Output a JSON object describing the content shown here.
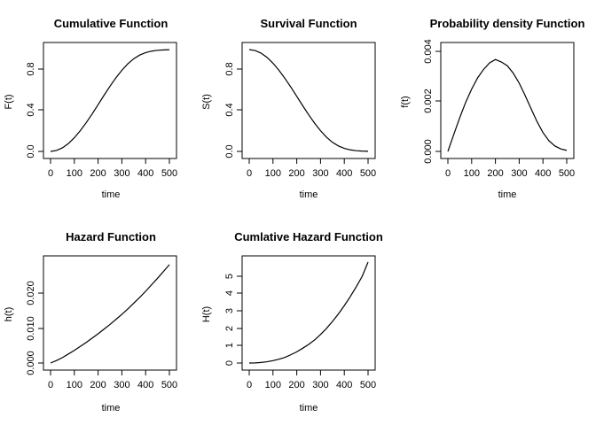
{
  "figure": {
    "panels": [
      {
        "id": "cdf",
        "title": "Cumulative Function",
        "xlabel": "time",
        "ylabel": "F(t)"
      },
      {
        "id": "surv",
        "title": "Survival Function",
        "xlabel": "time",
        "ylabel": "S(t)"
      },
      {
        "id": "pdf",
        "title": "Probability density Function",
        "xlabel": "time",
        "ylabel": "f(t)"
      },
      {
        "id": "haz",
        "title": "Hazard Function",
        "xlabel": "time",
        "ylabel": "h(t)"
      },
      {
        "id": "cumhaz",
        "title": "Cumlative Hazard Function",
        "xlabel": "time",
        "ylabel": "H(t)"
      }
    ]
  },
  "chart_data": [
    {
      "type": "line",
      "title": "Cumulative Function",
      "xlabel": "time",
      "ylabel": "F(t)",
      "xlim": [
        0,
        500
      ],
      "ylim": [
        0,
        1
      ],
      "xticks": [
        0,
        100,
        200,
        300,
        400,
        500
      ],
      "yticks": [
        0.0,
        0.4,
        0.8
      ],
      "ytick_labels": [
        "0.0",
        "0.4",
        "0.8"
      ],
      "line_color": "#000000",
      "x": [
        0,
        25,
        50,
        75,
        100,
        125,
        150,
        175,
        200,
        225,
        250,
        275,
        300,
        325,
        350,
        375,
        400,
        425,
        450,
        475,
        500
      ],
      "y": [
        0,
        0.009,
        0.035,
        0.077,
        0.134,
        0.203,
        0.282,
        0.368,
        0.459,
        0.551,
        0.64,
        0.723,
        0.797,
        0.86,
        0.91,
        0.946,
        0.97,
        0.985,
        0.993,
        0.997,
        0.999
      ]
    },
    {
      "type": "line",
      "title": "Survival Function",
      "xlabel": "time",
      "ylabel": "S(t)",
      "xlim": [
        0,
        500
      ],
      "ylim": [
        0,
        1
      ],
      "xticks": [
        0,
        100,
        200,
        300,
        400,
        500
      ],
      "yticks": [
        0.0,
        0.4,
        0.8
      ],
      "ytick_labels": [
        "0.0",
        "0.4",
        "0.8"
      ],
      "line_color": "#000000",
      "x": [
        0,
        25,
        50,
        75,
        100,
        125,
        150,
        175,
        200,
        225,
        250,
        275,
        300,
        325,
        350,
        375,
        400,
        425,
        450,
        475,
        500
      ],
      "y": [
        1,
        0.991,
        0.965,
        0.923,
        0.866,
        0.797,
        0.718,
        0.632,
        0.541,
        0.449,
        0.36,
        0.277,
        0.203,
        0.14,
        0.09,
        0.054,
        0.03,
        0.015,
        0.007,
        0.003,
        0.001
      ]
    },
    {
      "type": "line",
      "title": "Probability density Function",
      "xlabel": "time",
      "ylabel": "f(t)",
      "xlim": [
        0,
        500
      ],
      "ylim": [
        0,
        0.0041
      ],
      "xticks": [
        0,
        100,
        200,
        300,
        400,
        500
      ],
      "yticks": [
        0.0,
        0.002,
        0.004
      ],
      "ytick_labels": [
        "0.000",
        "0.002",
        "0.004"
      ],
      "line_color": "#000000",
      "x": [
        0,
        25,
        50,
        75,
        100,
        125,
        150,
        175,
        200,
        225,
        250,
        275,
        300,
        325,
        350,
        375,
        400,
        425,
        450,
        475,
        500
      ],
      "y": [
        0,
        0.00069,
        0.00136,
        0.00198,
        0.00251,
        0.00296,
        0.0033,
        0.00356,
        0.0037,
        0.0036,
        0.00345,
        0.00315,
        0.00275,
        0.00225,
        0.00172,
        0.0012,
        0.00076,
        0.00043,
        0.00022,
        0.0001,
        4e-05
      ]
    },
    {
      "type": "line",
      "title": "Hazard Function",
      "xlabel": "time",
      "ylabel": "h(t)",
      "xlim": [
        0,
        500
      ],
      "ylim": [
        0,
        0.028
      ],
      "xticks": [
        0,
        100,
        200,
        300,
        400,
        500
      ],
      "yticks": [
        0.0,
        0.01,
        0.02
      ],
      "ytick_labels": [
        "0.000",
        "0.010",
        "0.020"
      ],
      "line_color": "#000000",
      "x": [
        0,
        25,
        50,
        75,
        100,
        125,
        150,
        175,
        200,
        225,
        250,
        275,
        300,
        325,
        350,
        375,
        400,
        425,
        450,
        475,
        500
      ],
      "y": [
        0,
        0.0007,
        0.0015,
        0.0025,
        0.0035,
        0.0046,
        0.0057,
        0.0069,
        0.0081,
        0.0094,
        0.0107,
        0.0121,
        0.0135,
        0.015,
        0.0166,
        0.0182,
        0.0199,
        0.0217,
        0.0235,
        0.0254,
        0.0273
      ]
    },
    {
      "type": "line",
      "title": "Cumlative Hazard Function",
      "xlabel": "time",
      "ylabel": "H(t)",
      "xlim": [
        0,
        500
      ],
      "ylim": [
        0,
        5.6
      ],
      "xticks": [
        0,
        100,
        200,
        300,
        400,
        500
      ],
      "yticks": [
        0,
        1,
        2,
        3,
        4,
        5
      ],
      "ytick_labels": [
        "0",
        "1",
        "2",
        "3",
        "4",
        "5"
      ],
      "line_color": "#000000",
      "x": [
        0,
        25,
        50,
        75,
        100,
        125,
        150,
        175,
        200,
        225,
        250,
        275,
        300,
        325,
        350,
        375,
        400,
        425,
        450,
        475,
        500
      ],
      "y": [
        0,
        0.008,
        0.03,
        0.07,
        0.13,
        0.21,
        0.31,
        0.46,
        0.62,
        0.82,
        1.03,
        1.28,
        1.58,
        1.92,
        2.3,
        2.72,
        3.18,
        3.68,
        4.22,
        4.8,
        5.6
      ]
    }
  ]
}
